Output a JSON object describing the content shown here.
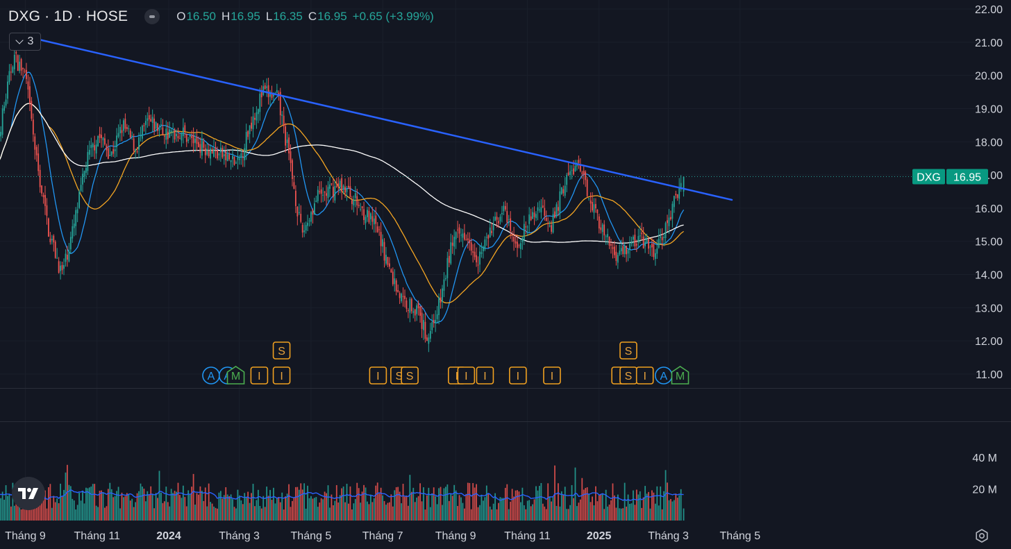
{
  "header": {
    "symbol": "DXG · 1D · HOSE",
    "open_label": "O",
    "open": "16.50",
    "high_label": "H",
    "high": "16.95",
    "low_label": "L",
    "low": "16.35",
    "close_label": "C",
    "close": "16.95",
    "change": "+0.65 (+3.99%)"
  },
  "indicators_toggle": {
    "count": "3"
  },
  "colors": {
    "up": "#26a69a",
    "down": "#ef5350",
    "trendline": "#2962ff",
    "ma_fast": "#2196f3",
    "ma_mid": "#f5a623",
    "ma_slow": "#ffffff",
    "event": "#f0a020",
    "background": "#131722"
  },
  "chart_data": {
    "type": "candlestick",
    "symbol": "DXG",
    "interval": "1D",
    "exchange": "HOSE",
    "last_price": 16.95,
    "last_price_label": "DXG",
    "y_axis_ticks": [
      "22.00",
      "21.00",
      "20.00",
      "19.00",
      "18.00",
      "17.00",
      "16.00",
      "15.00",
      "14.00",
      "13.00",
      "12.00",
      "11.00"
    ],
    "ylim": [
      11,
      22
    ],
    "volume_ticks": [
      "40 M",
      "20 M"
    ],
    "x_axis_ticks": [
      "Tháng 9",
      "Tháng 11",
      "2024",
      "Tháng 3",
      "Tháng 5",
      "Tháng 7",
      "Tháng 9",
      "Tháng 11",
      "2025",
      "Tháng 3",
      "Tháng 5"
    ],
    "price_path": [
      {
        "date": "2023-08-01",
        "close": 16.6
      },
      {
        "date": "2023-08-10",
        "close": 18.3
      },
      {
        "date": "2023-08-22",
        "close": 20.6
      },
      {
        "date": "2023-09-01",
        "close": 20.0
      },
      {
        "date": "2023-09-11",
        "close": 17.3
      },
      {
        "date": "2023-09-21",
        "close": 15.3
      },
      {
        "date": "2023-10-02",
        "close": 14.0
      },
      {
        "date": "2023-10-12",
        "close": 15.4
      },
      {
        "date": "2023-10-23",
        "close": 17.4
      },
      {
        "date": "2023-11-02",
        "close": 18.2
      },
      {
        "date": "2023-11-13",
        "close": 17.6
      },
      {
        "date": "2023-11-23",
        "close": 18.5
      },
      {
        "date": "2023-12-04",
        "close": 17.8
      },
      {
        "date": "2023-12-14",
        "close": 18.6
      },
      {
        "date": "2024-01-02",
        "close": 18.2
      },
      {
        "date": "2024-01-12",
        "close": 18.3
      },
      {
        "date": "2024-01-23",
        "close": 18.0
      },
      {
        "date": "2024-02-15",
        "close": 17.6
      },
      {
        "date": "2024-02-29",
        "close": 17.3
      },
      {
        "date": "2024-03-11",
        "close": 18.6
      },
      {
        "date": "2024-03-21",
        "close": 19.5
      },
      {
        "date": "2024-04-03",
        "close": 19.3
      },
      {
        "date": "2024-04-12",
        "close": 17.6
      },
      {
        "date": "2024-04-23",
        "close": 15.2
      },
      {
        "date": "2024-05-06",
        "close": 16.3
      },
      {
        "date": "2024-05-16",
        "close": 16.5
      },
      {
        "date": "2024-05-27",
        "close": 16.7
      },
      {
        "date": "2024-06-06",
        "close": 16.3
      },
      {
        "date": "2024-06-17",
        "close": 15.8
      },
      {
        "date": "2024-06-27",
        "close": 15.3
      },
      {
        "date": "2024-07-08",
        "close": 14.0
      },
      {
        "date": "2024-07-18",
        "close": 13.2
      },
      {
        "date": "2024-07-29",
        "close": 13.0
      },
      {
        "date": "2024-08-08",
        "close": 12.1
      },
      {
        "date": "2024-08-19",
        "close": 13.2
      },
      {
        "date": "2024-08-29",
        "close": 15.0
      },
      {
        "date": "2024-09-10",
        "close": 15.3
      },
      {
        "date": "2024-09-20",
        "close": 14.5
      },
      {
        "date": "2024-10-01",
        "close": 15.3
      },
      {
        "date": "2024-10-11",
        "close": 16.0
      },
      {
        "date": "2024-10-22",
        "close": 14.8
      },
      {
        "date": "2024-11-01",
        "close": 15.5
      },
      {
        "date": "2024-11-12",
        "close": 16.1
      },
      {
        "date": "2024-11-22",
        "close": 15.5
      },
      {
        "date": "2024-12-03",
        "close": 16.8
      },
      {
        "date": "2024-12-13",
        "close": 17.3
      },
      {
        "date": "2024-12-24",
        "close": 16.4
      },
      {
        "date": "2025-01-06",
        "close": 15.1
      },
      {
        "date": "2025-01-16",
        "close": 14.6
      },
      {
        "date": "2025-02-05",
        "close": 15.1
      },
      {
        "date": "2025-02-17",
        "close": 14.6
      },
      {
        "date": "2025-02-27",
        "close": 15.4
      },
      {
        "date": "2025-03-10",
        "close": 16.6
      },
      {
        "date": "2025-03-14",
        "close": 16.95
      }
    ],
    "trendline": [
      {
        "date": "2023-08-29",
        "price": 21.2
      },
      {
        "date": "2025-04-24",
        "price": 16.25
      }
    ],
    "moving_averages": [
      {
        "key": "fast",
        "color": "#2196f3"
      },
      {
        "key": "mid",
        "color": "#f5a623"
      },
      {
        "key": "slow",
        "color": "#ffffff"
      }
    ],
    "events": [
      {
        "date": "2024-02-06",
        "label": "A",
        "kind": "a"
      },
      {
        "date": "2024-02-20",
        "label": "A",
        "kind": "a"
      },
      {
        "date": "2024-02-27",
        "label": "M",
        "kind": "m"
      },
      {
        "date": "2024-03-18",
        "label": "I",
        "kind": "i"
      },
      {
        "date": "2024-04-06",
        "label": "S",
        "kind": "s",
        "row": 2
      },
      {
        "date": "2024-04-06",
        "label": "I",
        "kind": "i"
      },
      {
        "date": "2024-06-27",
        "label": "I",
        "kind": "i"
      },
      {
        "date": "2024-07-15",
        "label": "S",
        "kind": "s"
      },
      {
        "date": "2024-07-24",
        "label": "S",
        "kind": "s"
      },
      {
        "date": "2024-09-02",
        "label": "I",
        "kind": "i"
      },
      {
        "date": "2024-09-10",
        "label": "I",
        "kind": "i"
      },
      {
        "date": "2024-09-26",
        "label": "I",
        "kind": "i"
      },
      {
        "date": "2024-10-24",
        "label": "I",
        "kind": "i"
      },
      {
        "date": "2024-11-22",
        "label": "I",
        "kind": "i"
      },
      {
        "date": "2025-01-19",
        "label": "I",
        "kind": "i"
      },
      {
        "date": "2025-01-26",
        "label": "S",
        "kind": "s",
        "row": 2
      },
      {
        "date": "2025-01-26",
        "label": "S",
        "kind": "s"
      },
      {
        "date": "2025-02-09",
        "label": "I",
        "kind": "i"
      },
      {
        "date": "2025-02-25",
        "label": "A",
        "kind": "a"
      },
      {
        "date": "2025-03-11",
        "label": "M",
        "kind": "m"
      }
    ],
    "grid": true
  }
}
